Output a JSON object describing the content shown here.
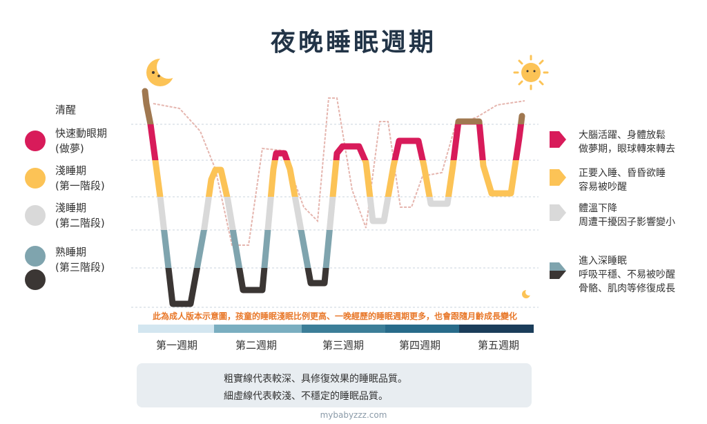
{
  "title": "夜晚睡眠週期",
  "stages": [
    {
      "label_lines": [
        "清醒"
      ],
      "color": null
    },
    {
      "label_lines": [
        "快速動眼期",
        "(做夢)"
      ],
      "color": "#d81b5a"
    },
    {
      "label_lines": [
        "淺睡期",
        "(第一階段)"
      ],
      "color": "#fcc356"
    },
    {
      "label_lines": [
        "淺睡期",
        "(第二階段)"
      ],
      "color": "#d9d9d9"
    },
    {
      "label_lines": [
        "熟睡期",
        "(第三階段)"
      ],
      "color": "#7fa4ae"
    },
    {
      "label_lines": [],
      "color": "#3b3634"
    }
  ],
  "descriptions": [
    {
      "lines": [
        "大腦活躍、身體放鬆",
        "做夢期，眼球轉來轉去"
      ],
      "color": "#d81b5a"
    },
    {
      "lines": [
        "正要入睡、昏昏欲睡",
        "容易被吵醒"
      ],
      "color": "#fcc356"
    },
    {
      "lines": [
        "體溫下降",
        "周遭干擾因子影響變小"
      ],
      "color": "#d9d9d9"
    },
    {
      "lines": [
        "進入深睡眠",
        "呼吸平穩、不易被吵醒",
        "骨骼、肌肉等修復成長"
      ],
      "color": "#7fa4ae",
      "color2": "#3b3634"
    }
  ],
  "note": "此為成人版本示意圖，孩童的睡眠淺眠比例更高、一晚經歷的睡眠週期更多，也會跟隨月齡成長變化",
  "legend": {
    "solid_label": "粗實線代表較深、具修復效果的睡眠品質。",
    "dashed_label": "細虛線代表較淺、不穩定的睡眠品質。"
  },
  "footer": "mybabyzzz.com",
  "icons": {
    "moon": "moon-icon",
    "sun": "sun-icon"
  },
  "colors": {
    "awake": "#a07850",
    "rem": "#d81b5a",
    "light1": "#fcc356",
    "light2": "#d9d9d9",
    "deep": "#7fa4ae",
    "deepest": "#3b3634",
    "axis_bar": "#2a4a6a"
  },
  "chart_data": {
    "type": "line",
    "title": "夜晚睡眠週期",
    "xlabel": "",
    "ylabel": "",
    "stage_order": [
      "清醒",
      "快速動眼期",
      "淺睡期(第一階段)",
      "淺睡期(第二階段)",
      "熟睡期(第三階段)",
      "熟睡期(深)"
    ],
    "categories": [
      "第一週期",
      "第二週期",
      "第三週期",
      "第四週期",
      "第五週期"
    ],
    "series": [
      {
        "line_style": "solid",
        "x": [
          0,
          0.1,
          0.15,
          0.3,
          0.55,
          0.9,
          1.0,
          1.2,
          1.25,
          1.4,
          1.55,
          1.75,
          2.0,
          2.15,
          2.3,
          2.45,
          2.65,
          2.85,
          3.05,
          3.25,
          3.4,
          3.6,
          3.8,
          4.0,
          4.2,
          4.45,
          4.6,
          4.8,
          5.0,
          5.2,
          5.45,
          5.6,
          5.75,
          5.95,
          6.15,
          6.4,
          6.55,
          6.7,
          6.85,
          7.0,
          7.15,
          7.3,
          7.5,
          7.7,
          7.95,
          8.15,
          8.3,
          8.45,
          8.6,
          8.75
        ],
        "y": [
          0,
          0.7,
          1,
          2,
          4,
          5,
          5,
          4,
          3,
          2,
          2,
          3,
          4,
          5,
          5,
          4,
          2,
          1,
          1,
          2,
          3,
          4,
          5,
          5,
          4,
          2,
          1,
          1,
          2,
          3,
          3,
          2,
          1,
          1,
          2,
          3,
          3,
          2,
          1,
          0.2,
          0.2,
          1,
          2,
          2,
          1,
          0.5,
          0.5,
          0.5,
          0.5,
          0.3
        ]
      },
      {
        "line_style": "dashed",
        "x": [
          0.1,
          0.5,
          0.8,
          1.1,
          1.3,
          1.5,
          1.8,
          2.1,
          2.5,
          2.9,
          3.2,
          3.4,
          3.6,
          3.85,
          4.1,
          4.35,
          4.6,
          4.8,
          5.0,
          5.3,
          5.6,
          5.9,
          6.2,
          6.5,
          6.9,
          7.3,
          7.7,
          8.2,
          8.6
        ],
        "y": [
          0.2,
          0.3,
          0.9,
          2,
          2.7,
          3.4,
          3.4,
          1,
          1,
          2.8,
          2.8,
          0,
          0,
          2.8,
          3.1,
          3.1,
          0.2,
          0.2,
          2,
          2.8,
          2.8,
          1.8,
          1.6,
          1.2,
          1.1,
          0.6,
          0.5,
          0.3,
          0.2
        ]
      }
    ]
  }
}
